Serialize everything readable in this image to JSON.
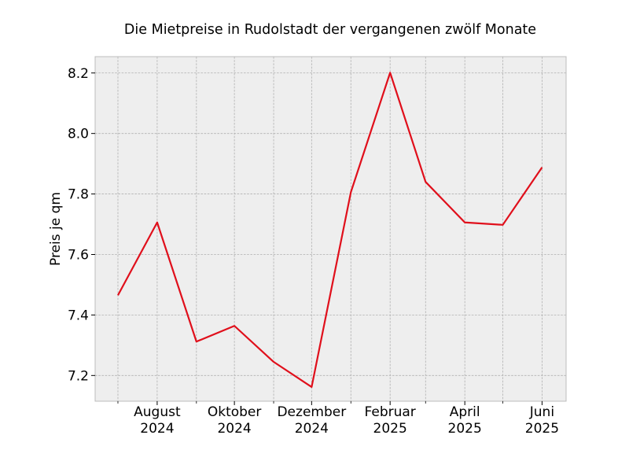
{
  "chart_data": {
    "type": "line",
    "title": "Die Mietpreise in Rudolstadt der vergangenen zwölf Monate",
    "xlabel": "",
    "ylabel": "Preis je qm",
    "x": [
      "2024-07",
      "2024-08",
      "2024-09",
      "2024-10",
      "2024-11",
      "2024-12",
      "2025-01",
      "2025-02",
      "2025-03",
      "2025-04",
      "2025-05",
      "2025-06"
    ],
    "series": [
      {
        "values": [
          7.465,
          7.706,
          7.312,
          7.364,
          7.245,
          7.162,
          7.806,
          8.201,
          7.84,
          7.706,
          7.698,
          7.888
        ]
      }
    ],
    "xlim": [
      "2024-06-13",
      "2025-06-20"
    ],
    "ylim": [
      7.115,
      8.254
    ],
    "yticks": [
      "7.2",
      "7.4",
      "7.6",
      "7.8",
      "8.0",
      "8.2"
    ],
    "xticks": [
      {
        "month": "2024-08",
        "line1": "August",
        "line2": "2024"
      },
      {
        "month": "2024-10",
        "line1": "Oktober",
        "line2": "2024"
      },
      {
        "month": "2024-12",
        "line1": "Dezember",
        "line2": "2024"
      },
      {
        "month": "2025-02",
        "line1": "Februar",
        "line2": "2025"
      },
      {
        "month": "2025-04",
        "line1": "April",
        "line2": "2025"
      },
      {
        "month": "2025-06",
        "line1": "Juni",
        "line2": "2025"
      }
    ],
    "minor_ticks": [
      "2024-07",
      "2024-09",
      "2024-11",
      "2025-01",
      "2025-03",
      "2025-05"
    ],
    "grid": true,
    "colors": {
      "line": "#e00f1b",
      "plot_background": "#eeeeee",
      "grid": "#b0b0b0",
      "frame": "#bcbcbc"
    }
  }
}
